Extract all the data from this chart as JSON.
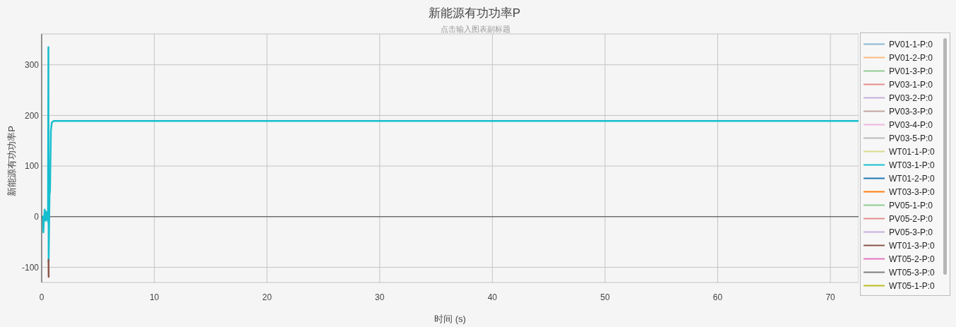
{
  "chart_data": {
    "type": "line",
    "title": "新能源有功功率P",
    "subtitle": "点击输入图表副标题",
    "xlabel": "时间 (s)",
    "ylabel": "新能源有功功率P",
    "x": [
      0,
      0.1,
      0.15,
      0.2,
      0.27,
      0.33,
      0.4,
      0.45,
      0.5,
      0.56,
      0.6,
      0.62,
      0.7,
      0.74,
      0.82,
      0.9,
      1.05,
      72.5
    ],
    "series": [
      {
        "name": "PV01-1-P:0",
        "color": "#8bb7d5",
        "values": [
          null,
          null,
          null,
          null,
          null,
          null,
          null,
          null,
          null,
          null,
          null,
          null,
          null,
          null,
          null,
          null,
          null,
          null
        ]
      },
      {
        "name": "PV01-2-P:0",
        "color": "#fbbb82",
        "values": [
          null,
          null,
          null,
          null,
          null,
          null,
          null,
          null,
          null,
          null,
          null,
          null,
          null,
          null,
          null,
          null,
          null,
          null
        ]
      },
      {
        "name": "PV01-3-P:0",
        "color": "#91cb91",
        "values": [
          null,
          null,
          null,
          null,
          null,
          null,
          null,
          null,
          null,
          null,
          null,
          null,
          null,
          null,
          null,
          null,
          null,
          null
        ]
      },
      {
        "name": "PV03-1-P:0",
        "color": "#e68f8f",
        "values": [
          null,
          null,
          null,
          null,
          null,
          null,
          null,
          null,
          null,
          null,
          null,
          null,
          null,
          null,
          null,
          null,
          null,
          null
        ]
      },
      {
        "name": "PV03-2-P:0",
        "color": "#c5afda",
        "values": [
          null,
          null,
          null,
          null,
          null,
          null,
          null,
          null,
          null,
          null,
          null,
          null,
          null,
          null,
          null,
          null,
          null,
          null
        ]
      },
      {
        "name": "PV03-3-P:0",
        "color": "#c1a6a1",
        "values": [
          null,
          null,
          null,
          null,
          null,
          null,
          null,
          null,
          null,
          null,
          null,
          null,
          null,
          null,
          null,
          null,
          null,
          null
        ]
      },
      {
        "name": "PV03-4-P:0",
        "color": "#edb7dc",
        "values": [
          null,
          null,
          null,
          null,
          null,
          null,
          null,
          null,
          null,
          null,
          null,
          null,
          null,
          null,
          null,
          null,
          null,
          null
        ]
      },
      {
        "name": "PV03-5-P:0",
        "color": "#bbbbbb",
        "values": [
          null,
          null,
          null,
          null,
          null,
          null,
          null,
          null,
          null,
          null,
          null,
          null,
          null,
          null,
          null,
          null,
          null,
          null
        ]
      },
      {
        "name": "WT01-1-P:0",
        "color": "#d9da8c",
        "values": [
          null,
          null,
          null,
          null,
          null,
          null,
          null,
          null,
          null,
          null,
          null,
          null,
          null,
          null,
          null,
          null,
          null,
          null
        ]
      },
      {
        "name": "WT03-1-P:0",
        "color": "#17becf",
        "values": [
          0,
          0,
          -31,
          -5,
          14,
          -8,
          10,
          -6,
          8,
          -10,
          335,
          -89,
          44,
          50,
          170,
          186,
          189,
          189
        ]
      },
      {
        "name": "WT01-2-P:0",
        "color": "#1f77b4",
        "values": [
          null,
          null,
          null,
          null,
          null,
          null,
          null,
          null,
          null,
          null,
          null,
          null,
          null,
          null,
          null,
          null,
          null,
          null
        ]
      },
      {
        "name": "WT03-3-P:0",
        "color": "#ff7f0e",
        "values": [
          null,
          null,
          null,
          null,
          null,
          null,
          null,
          null,
          null,
          null,
          null,
          null,
          null,
          null,
          null,
          null,
          null,
          null
        ]
      },
      {
        "name": "PV05-1-P:0",
        "color": "#91cb91",
        "values": [
          null,
          null,
          null,
          null,
          null,
          null,
          null,
          null,
          null,
          null,
          null,
          null,
          null,
          null,
          null,
          null,
          null,
          null
        ]
      },
      {
        "name": "PV05-2-P:0",
        "color": "#e68f8f",
        "values": [
          null,
          null,
          null,
          null,
          null,
          null,
          null,
          null,
          null,
          null,
          null,
          null,
          null,
          null,
          null,
          null,
          null,
          null
        ]
      },
      {
        "name": "PV05-3-P:0",
        "color": "#c5afda",
        "values": [
          null,
          null,
          null,
          null,
          null,
          null,
          null,
          null,
          null,
          null,
          null,
          null,
          null,
          null,
          null,
          null,
          null,
          null
        ]
      },
      {
        "name": "WT01-3-P:0",
        "color": "#8c564b",
        "x": [
          0.61,
          0.62
        ],
        "values": [
          -85,
          -119
        ]
      },
      {
        "name": "WT05-2-P:0",
        "color": "#e377c2",
        "values": [
          null,
          null,
          null,
          null,
          null,
          null,
          null,
          null,
          null,
          null,
          null,
          null,
          null,
          null,
          null,
          null,
          null,
          null
        ]
      },
      {
        "name": "WT05-3-P:0",
        "color": "#7f7f7f",
        "values": [
          null,
          null,
          null,
          null,
          null,
          null,
          null,
          null,
          null,
          null,
          null,
          null,
          null,
          null,
          null,
          null,
          null,
          null
        ]
      },
      {
        "name": "WT05-1-P:0",
        "color": "#bcbd22",
        "values": [
          null,
          null,
          null,
          null,
          null,
          null,
          null,
          null,
          null,
          null,
          null,
          null,
          null,
          null,
          null,
          null,
          null,
          null
        ]
      }
    ],
    "xlim": [
      0,
      72.5
    ],
    "xticks": [
      0,
      10,
      20,
      30,
      40,
      50,
      60,
      70
    ],
    "ylim": [
      -130,
      361
    ],
    "yticks": [
      -100,
      0,
      100,
      200,
      300
    ],
    "grid": true,
    "legend": "right",
    "marker": "none",
    "line_style": "solid",
    "ref_lines": [
      {
        "axis": "y",
        "value": 0,
        "color": "#444444"
      }
    ]
  }
}
